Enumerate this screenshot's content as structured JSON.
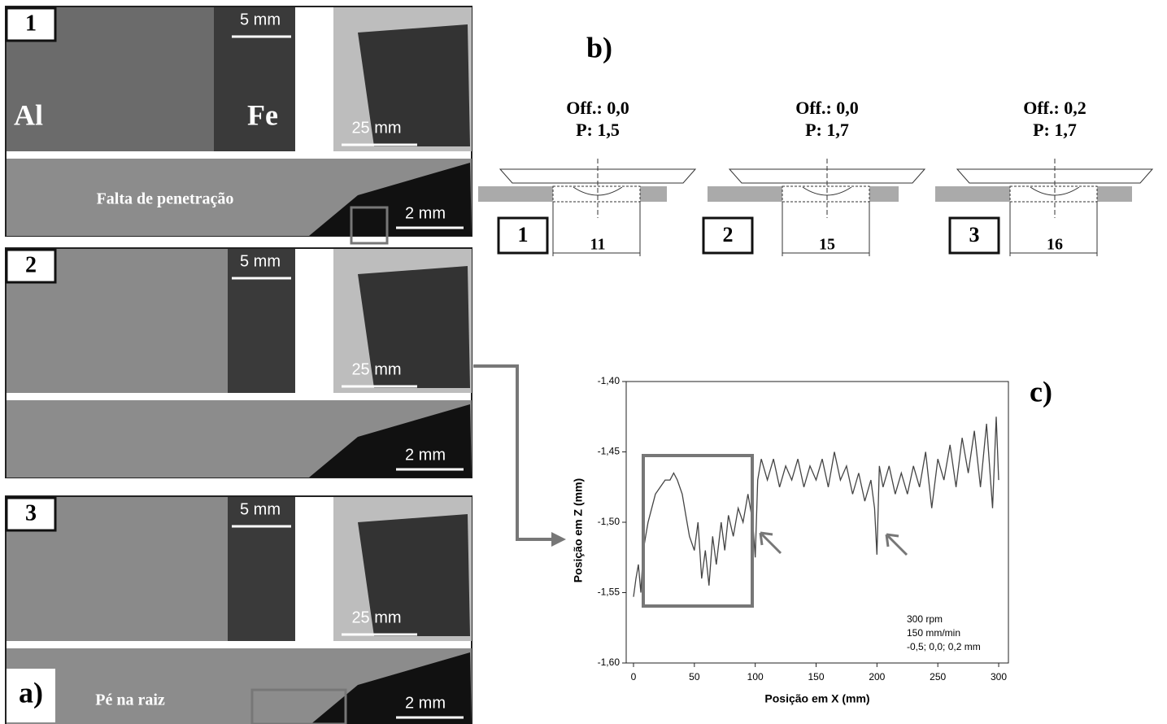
{
  "panel_a": {
    "label": "a)",
    "samples": [
      {
        "number": "1",
        "top_scale": "5 mm",
        "photo_scale": "25 mm",
        "section_scale": "2 mm",
        "materials": [
          "Al",
          "Fe"
        ],
        "annotation": "Falta de penetração"
      },
      {
        "number": "2",
        "top_scale": "5 mm",
        "photo_scale": "25 mm",
        "section_scale": "2 mm"
      },
      {
        "number": "3",
        "top_scale": "5 mm",
        "photo_scale": "25 mm",
        "section_scale": "2 mm",
        "annotation": "Pé na raiz"
      }
    ]
  },
  "panel_b": {
    "label": "b)",
    "configs": [
      {
        "number": "1",
        "offset": "Off.: 0,0",
        "penetration": "P: 1,5",
        "width": "11"
      },
      {
        "number": "2",
        "offset": "Off.: 0,0",
        "penetration": "P: 1,7",
        "width": "15"
      },
      {
        "number": "3",
        "offset": "Off.: 0,2",
        "penetration": "P: 1,7",
        "width": "16"
      }
    ]
  },
  "chart_data": {
    "type": "line",
    "label": "c)",
    "xlabel": "Posição em X (mm)",
    "ylabel": "Posição em Z (mm)",
    "annotation": [
      "300 rpm",
      "150 mm/min",
      "-0,5; 0,0; 0,2 mm"
    ],
    "color": "#444444",
    "x": [
      0,
      2,
      4,
      6,
      8,
      10,
      12,
      15,
      18,
      22,
      26,
      30,
      33,
      36,
      40,
      43,
      46,
      50,
      53,
      56,
      59,
      62,
      65,
      68,
      72,
      75,
      78,
      82,
      86,
      90,
      94,
      98,
      100,
      102,
      105,
      110,
      115,
      120,
      125,
      130,
      135,
      140,
      145,
      150,
      155,
      160,
      165,
      170,
      175,
      180,
      185,
      190,
      195,
      198,
      200,
      202,
      205,
      210,
      215,
      220,
      225,
      230,
      235,
      240,
      245,
      250,
      255,
      260,
      265,
      270,
      275,
      280,
      285,
      290,
      295,
      298,
      300
    ],
    "values": [
      -1.553,
      -1.54,
      -1.53,
      -1.55,
      -1.52,
      -1.51,
      -1.5,
      -1.49,
      -1.48,
      -1.475,
      -1.47,
      -1.47,
      -1.465,
      -1.47,
      -1.48,
      -1.495,
      -1.51,
      -1.52,
      -1.5,
      -1.54,
      -1.52,
      -1.545,
      -1.51,
      -1.53,
      -1.5,
      -1.52,
      -1.495,
      -1.51,
      -1.49,
      -1.5,
      -1.48,
      -1.5,
      -1.525,
      -1.47,
      -1.455,
      -1.47,
      -1.455,
      -1.475,
      -1.46,
      -1.47,
      -1.455,
      -1.475,
      -1.46,
      -1.47,
      -1.455,
      -1.475,
      -1.45,
      -1.47,
      -1.46,
      -1.48,
      -1.465,
      -1.485,
      -1.47,
      -1.49,
      -1.523,
      -1.46,
      -1.475,
      -1.46,
      -1.48,
      -1.465,
      -1.48,
      -1.46,
      -1.475,
      -1.45,
      -1.49,
      -1.455,
      -1.47,
      -1.445,
      -1.475,
      -1.44,
      -1.465,
      -1.435,
      -1.475,
      -1.43,
      -1.49,
      -1.425,
      -1.47
    ],
    "xlim": [
      -6,
      308
    ],
    "xticks": [
      0,
      50,
      100,
      150,
      200,
      250,
      300
    ],
    "ylim": [
      -1.6,
      -1.4
    ],
    "yticks": [
      {
        "value": -1.6,
        "label": "-1,60"
      },
      {
        "value": -1.55,
        "label": "-1,55"
      },
      {
        "value": -1.5,
        "label": "-1,50"
      },
      {
        "value": -1.45,
        "label": "-1,45"
      },
      {
        "value": -1.4,
        "label": "-1,40"
      }
    ]
  }
}
